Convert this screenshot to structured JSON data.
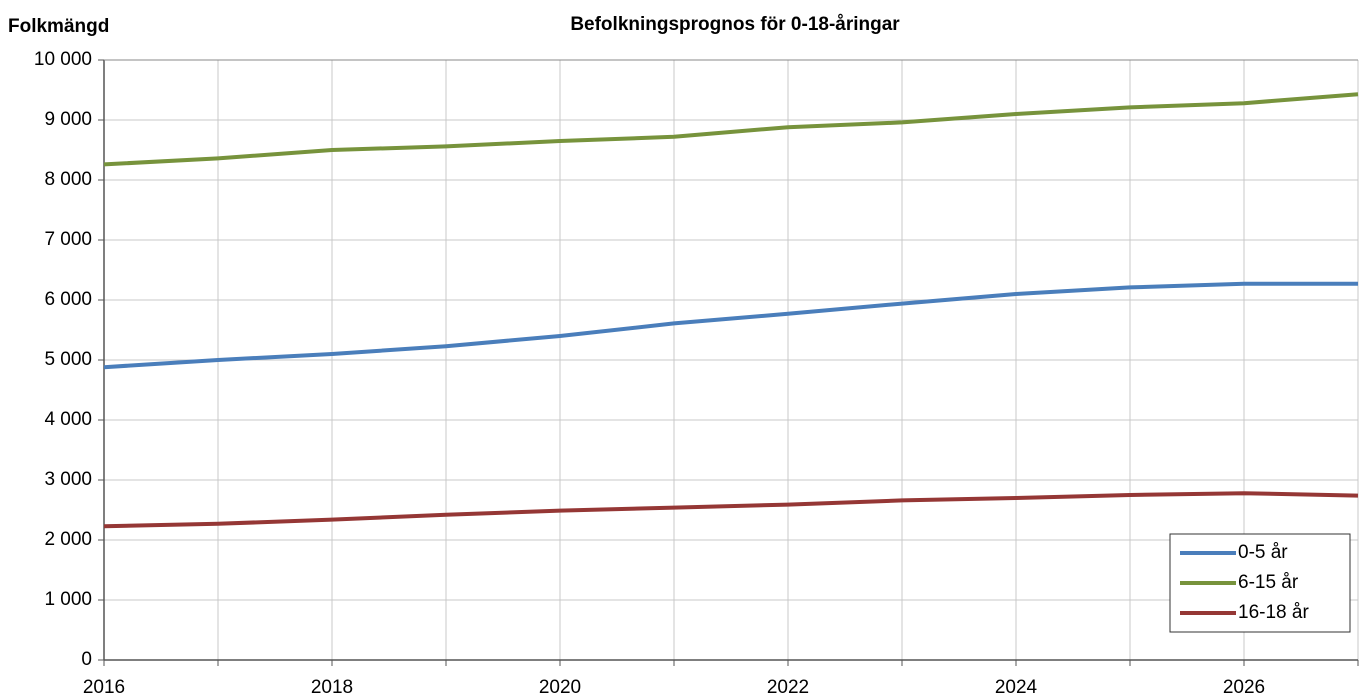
{
  "chart_data": {
    "type": "line",
    "title": "Befolkningsprognos för 0-18-åringar",
    "y_label": "Folkmängd",
    "x": [
      2016,
      2017,
      2018,
      2019,
      2020,
      2021,
      2022,
      2023,
      2024,
      2025,
      2026,
      2027
    ],
    "series": [
      {
        "name": "0-5 år",
        "color": "#4a7ebb",
        "values": [
          4880,
          5000,
          5100,
          5230,
          5400,
          5610,
          5770,
          5940,
          6100,
          6210,
          6270,
          6270
        ]
      },
      {
        "name": "6-15 år",
        "color": "#77933c",
        "values": [
          8260,
          8360,
          8500,
          8560,
          8650,
          8720,
          8880,
          8960,
          9100,
          9210,
          9280,
          9430
        ]
      },
      {
        "name": "16-18 år",
        "color": "#953735",
        "values": [
          2230,
          2270,
          2340,
          2420,
          2490,
          2540,
          2590,
          2660,
          2700,
          2750,
          2780,
          2740
        ]
      }
    ],
    "xlim": [
      2016,
      2027
    ],
    "xticks": [
      2016,
      2018,
      2020,
      2022,
      2024,
      2026
    ],
    "ylim": [
      0,
      10000
    ],
    "yticks": [
      0,
      {
        "value": 1000,
        "label": "1 000"
      },
      {
        "value": 2000,
        "label": "2 000"
      },
      {
        "value": 3000,
        "label": "3 000"
      },
      {
        "value": 4000,
        "label": "4 000"
      },
      {
        "value": 5000,
        "label": "5 000"
      },
      {
        "value": 6000,
        "label": "6 000"
      },
      {
        "value": 7000,
        "label": "7 000"
      },
      {
        "value": 8000,
        "label": "8 000"
      },
      {
        "value": 9000,
        "label": "9 000"
      },
      {
        "value": 10000,
        "label": "10 000"
      }
    ],
    "grid": true,
    "legend": "lower right"
  }
}
